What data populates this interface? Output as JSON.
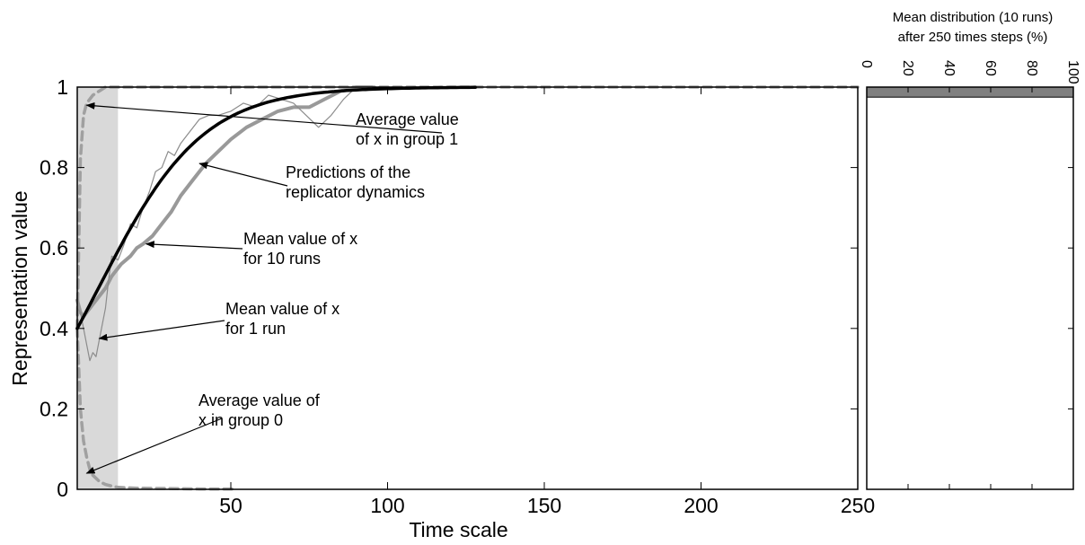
{
  "chart_data": [
    {
      "type": "line",
      "xlabel": "Time scale",
      "ylabel": "Representation value",
      "xlim": [
        1,
        250
      ],
      "ylim": [
        0,
        1
      ],
      "xticks": [
        50,
        100,
        150,
        200,
        250
      ],
      "yticks": [
        0,
        0.2,
        0.4,
        0.6,
        0.8,
        1
      ],
      "ytick_labels": [
        "0",
        "0.2",
        "0.4",
        "0.6",
        "0.8",
        "1"
      ],
      "grid": false,
      "shaded_region": [
        1,
        14
      ],
      "colors": {
        "shade": "#d9d9d9",
        "dashed_gray": "#a0a0a0",
        "mean10": "#999999",
        "single_run": "#8c8c8c",
        "replicator": "#000000"
      },
      "series": [
        {
          "key": "group1",
          "style": "dashed",
          "x": [
            1,
            2,
            3,
            4,
            6,
            8,
            10,
            14,
            20,
            40,
            80,
            120,
            160,
            200,
            250
          ],
          "y": [
            0.4,
            0.82,
            0.93,
            0.96,
            0.98,
            0.99,
            1.0,
            1.0,
            1.0,
            1.0,
            1.0,
            1.0,
            1.0,
            1.0,
            1.0
          ]
        },
        {
          "key": "group0",
          "style": "dashed",
          "x": [
            1,
            2,
            3,
            4,
            5,
            6,
            8,
            10,
            12,
            14,
            20,
            30,
            40,
            50,
            52
          ],
          "y": [
            0.4,
            0.2,
            0.12,
            0.08,
            0.05,
            0.035,
            0.02,
            0.012,
            0.008,
            0.005,
            0.003,
            0.002,
            0.001,
            0.001,
            0.0
          ]
        },
        {
          "key": "mean10",
          "style": "thick-gray",
          "x": [
            1,
            2,
            3,
            4,
            5,
            6,
            8,
            10,
            12,
            15,
            18,
            20,
            22,
            25,
            28,
            31,
            34,
            38,
            42,
            46,
            50,
            55,
            60,
            65,
            70,
            75,
            80,
            85,
            90,
            95
          ],
          "y": [
            0.47,
            0.44,
            0.43,
            0.44,
            0.45,
            0.46,
            0.48,
            0.5,
            0.53,
            0.56,
            0.58,
            0.6,
            0.61,
            0.63,
            0.66,
            0.69,
            0.73,
            0.77,
            0.81,
            0.84,
            0.87,
            0.9,
            0.92,
            0.94,
            0.95,
            0.95,
            0.97,
            0.99,
            1.0,
            1.0
          ]
        },
        {
          "key": "single_run",
          "style": "thin-gray",
          "x": [
            1,
            2,
            3,
            4,
            5,
            6,
            7,
            8,
            9,
            10,
            11,
            12,
            14,
            16,
            18,
            20,
            22,
            24,
            26,
            28,
            30,
            32,
            34,
            36,
            38,
            40,
            43,
            46,
            50,
            54,
            58,
            62,
            66,
            70,
            74,
            78,
            82,
            86,
            90
          ],
          "y": [
            0.45,
            0.44,
            0.4,
            0.36,
            0.32,
            0.34,
            0.33,
            0.37,
            0.41,
            0.45,
            0.52,
            0.58,
            0.57,
            0.61,
            0.66,
            0.65,
            0.7,
            0.74,
            0.79,
            0.8,
            0.84,
            0.83,
            0.86,
            0.88,
            0.9,
            0.92,
            0.93,
            0.93,
            0.94,
            0.96,
            0.95,
            0.98,
            0.97,
            0.96,
            0.93,
            0.9,
            0.93,
            0.97,
            1.0
          ]
        },
        {
          "key": "replicator",
          "style": "thick-black",
          "func": "logistic",
          "x0": 1,
          "x1": 128,
          "initial": 0.4,
          "rate": 0.06
        }
      ],
      "annotations": [
        {
          "lines": [
            "Average value",
            "of x in group 1"
          ],
          "point": [
            4,
            0.955
          ]
        },
        {
          "lines": [
            "Predictions of the",
            "replicator dynamics"
          ],
          "point": [
            40,
            0.81
          ]
        },
        {
          "lines": [
            "Mean value of x",
            "for 10 runs"
          ],
          "point": [
            23,
            0.61
          ]
        },
        {
          "lines": [
            "Mean value of x",
            "for 1 run"
          ],
          "point": [
            8,
            0.375
          ]
        },
        {
          "lines": [
            "Average value of",
            "x in group 0"
          ],
          "point": [
            4,
            0.04
          ]
        }
      ]
    },
    {
      "type": "bar",
      "orientation": "horizontal",
      "title_lines": [
        "Mean distribution (10 runs)",
        "after 250 times steps (%)"
      ],
      "xlim": [
        0,
        100
      ],
      "xticks": [
        0,
        20,
        40,
        60,
        80,
        100
      ],
      "ylim": [
        0,
        1
      ],
      "bars": [
        {
          "y0": 0.975,
          "y1": 1.0,
          "value": 100
        }
      ],
      "colors": {
        "bar": "#808080"
      }
    }
  ]
}
